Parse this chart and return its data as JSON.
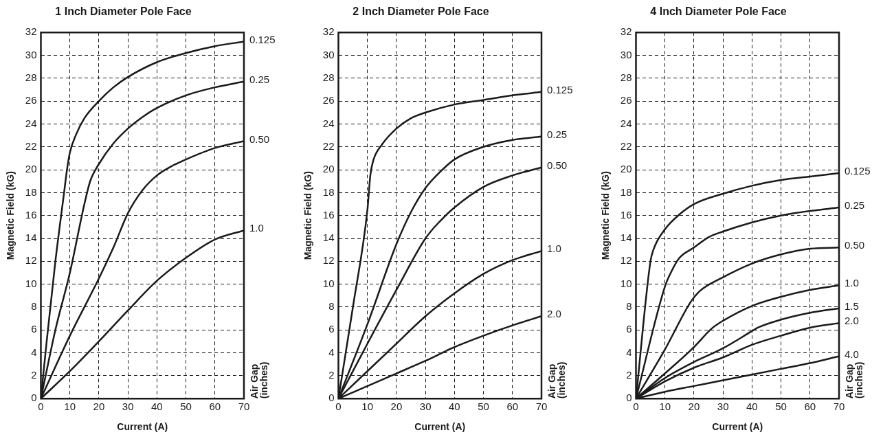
{
  "chart_data": [
    {
      "type": "line",
      "title": "1 Inch Diameter Pole Face",
      "xlabel": "Current (A)",
      "ylabel": "Magnetic Field (kG)",
      "legend_title": "Air Gap (inches)",
      "xlim": [
        0,
        70
      ],
      "ylim": [
        0,
        32
      ],
      "xticks": [
        0,
        10,
        20,
        30,
        40,
        50,
        60,
        70
      ],
      "yticks": [
        0,
        2,
        4,
        6,
        8,
        10,
        12,
        14,
        16,
        18,
        20,
        22,
        24,
        26,
        28,
        30,
        32
      ],
      "grid": true,
      "series": [
        {
          "name": "0.125",
          "color": "#1a1a1a",
          "x": [
            0,
            2,
            5,
            8,
            9,
            10,
            12,
            15,
            20,
            25,
            30,
            40,
            50,
            60,
            70
          ],
          "values": [
            0,
            5,
            12,
            18,
            20,
            21.5,
            23,
            24.5,
            26,
            27.2,
            28.1,
            29.4,
            30.2,
            30.8,
            31.2
          ]
        },
        {
          "name": "0.25",
          "color": "#1a1a1a",
          "x": [
            0,
            5,
            10,
            15,
            17,
            20,
            25,
            30,
            35,
            40,
            50,
            60,
            70
          ],
          "values": [
            0,
            6,
            11,
            17,
            19,
            20.5,
            22.3,
            23.6,
            24.6,
            25.4,
            26.5,
            27.2,
            27.7
          ]
        },
        {
          "name": "0.50",
          "color": "#1a1a1a",
          "x": [
            0,
            10,
            20,
            25,
            30,
            35,
            40,
            45,
            50,
            60,
            70
          ],
          "values": [
            0,
            5.5,
            10.5,
            13.2,
            16.2,
            18.2,
            19.5,
            20.3,
            20.9,
            21.9,
            22.5
          ]
        },
        {
          "name": "1.0",
          "color": "#1a1a1a",
          "x": [
            0,
            10,
            20,
            30,
            40,
            50,
            60,
            70
          ],
          "values": [
            0,
            2.4,
            5,
            7.7,
            10.3,
            12.3,
            13.9,
            14.7
          ]
        }
      ]
    },
    {
      "type": "line",
      "title": "2 Inch Diameter Pole Face",
      "xlabel": "Current (A)",
      "ylabel": "Magnetic Field (kG)",
      "legend_title": "Air Gap (inches)",
      "xlim": [
        0,
        70
      ],
      "ylim": [
        0,
        32
      ],
      "xticks": [
        0,
        10,
        20,
        30,
        40,
        50,
        60,
        70
      ],
      "yticks": [
        0,
        2,
        4,
        6,
        8,
        10,
        12,
        14,
        16,
        18,
        20,
        22,
        24,
        26,
        28,
        30,
        32
      ],
      "grid": true,
      "series": [
        {
          "name": "0.125",
          "color": "#1a1a1a",
          "x": [
            0,
            5,
            10,
            11,
            12,
            15,
            20,
            25,
            30,
            40,
            50,
            60,
            70
          ],
          "values": [
            0,
            8,
            16.5,
            19.5,
            20.8,
            22.2,
            23.6,
            24.5,
            25,
            25.7,
            26.1,
            26.5,
            26.8
          ]
        },
        {
          "name": "0.25",
          "color": "#1a1a1a",
          "x": [
            0,
            10,
            20,
            25,
            30,
            35,
            40,
            50,
            60,
            70
          ],
          "values": [
            0,
            6.5,
            13.5,
            16.3,
            18.4,
            19.8,
            20.9,
            22,
            22.6,
            22.9
          ]
        },
        {
          "name": "0.50",
          "color": "#1a1a1a",
          "x": [
            0,
            10,
            20,
            30,
            35,
            40,
            50,
            60,
            70
          ],
          "values": [
            0,
            4.8,
            9.5,
            14,
            15.5,
            16.7,
            18.5,
            19.5,
            20.2
          ]
        },
        {
          "name": "1.0",
          "color": "#1a1a1a",
          "x": [
            0,
            10,
            20,
            30,
            40,
            50,
            60,
            70
          ],
          "values": [
            0,
            2.4,
            4.8,
            7.2,
            9.2,
            10.9,
            12.1,
            12.9
          ]
        },
        {
          "name": "2.0",
          "color": "#1a1a1a",
          "x": [
            0,
            10,
            20,
            30,
            40,
            50,
            60,
            70
          ],
          "values": [
            0,
            1.1,
            2.2,
            3.3,
            4.5,
            5.5,
            6.4,
            7.2
          ]
        }
      ]
    },
    {
      "type": "line",
      "title": "4 Inch Diameter Pole Face",
      "xlabel": "Current (A)",
      "ylabel": "Magnetic Field (kG)",
      "legend_title": "Air Gap (inches)",
      "xlim": [
        0,
        70
      ],
      "ylim": [
        0,
        32
      ],
      "xticks": [
        0,
        10,
        20,
        30,
        40,
        50,
        60,
        70
      ],
      "yticks": [
        0,
        2,
        4,
        6,
        8,
        10,
        12,
        14,
        16,
        18,
        20,
        22,
        24,
        26,
        28,
        30,
        32
      ],
      "grid": true,
      "series": [
        {
          "name": "0.125",
          "color": "#1a1a1a",
          "x": [
            0,
            5,
            6,
            10,
            15,
            20,
            30,
            40,
            50,
            60,
            70
          ],
          "values": [
            0,
            12,
            13,
            14.8,
            16.1,
            17,
            17.9,
            18.6,
            19.1,
            19.4,
            19.7
          ]
        },
        {
          "name": "0.25",
          "color": "#1a1a1a",
          "x": [
            0,
            10,
            12,
            15,
            20,
            25,
            30,
            40,
            50,
            60,
            70
          ],
          "values": [
            0,
            9.8,
            11,
            12.3,
            13.2,
            14.1,
            14.6,
            15.4,
            16,
            16.4,
            16.7
          ]
        },
        {
          "name": "0.50",
          "color": "#1a1a1a",
          "x": [
            0,
            10,
            19,
            22,
            30,
            40,
            50,
            60,
            70
          ],
          "values": [
            0,
            4.3,
            8.5,
            9.4,
            10.6,
            11.8,
            12.6,
            13.1,
            13.2
          ]
        },
        {
          "name": "1.0",
          "color": "#1a1a1a",
          "x": [
            0,
            10,
            20,
            26,
            30,
            40,
            50,
            60,
            70
          ],
          "values": [
            0,
            2.2,
            4.5,
            6.1,
            6.8,
            8.1,
            8.9,
            9.5,
            9.9
          ]
        },
        {
          "name": "1.5",
          "color": "#1a1a1a",
          "x": [
            0,
            10,
            20,
            30,
            40,
            42,
            50,
            60,
            70
          ],
          "values": [
            0,
            1.8,
            3.2,
            4.4,
            5.9,
            6.2,
            6.9,
            7.5,
            7.9
          ]
        },
        {
          "name": "2.0",
          "color": "#1a1a1a",
          "x": [
            0,
            10,
            20,
            30,
            40,
            50,
            60,
            70
          ],
          "values": [
            0,
            1.5,
            2.7,
            3.6,
            4.7,
            5.5,
            6.2,
            6.6
          ]
        },
        {
          "name": "4.0",
          "color": "#1a1a1a",
          "x": [
            0,
            10,
            20,
            30,
            40,
            50,
            60,
            70
          ],
          "values": [
            0,
            0.6,
            1.1,
            1.6,
            2.1,
            2.6,
            3.1,
            3.7
          ]
        }
      ]
    }
  ]
}
